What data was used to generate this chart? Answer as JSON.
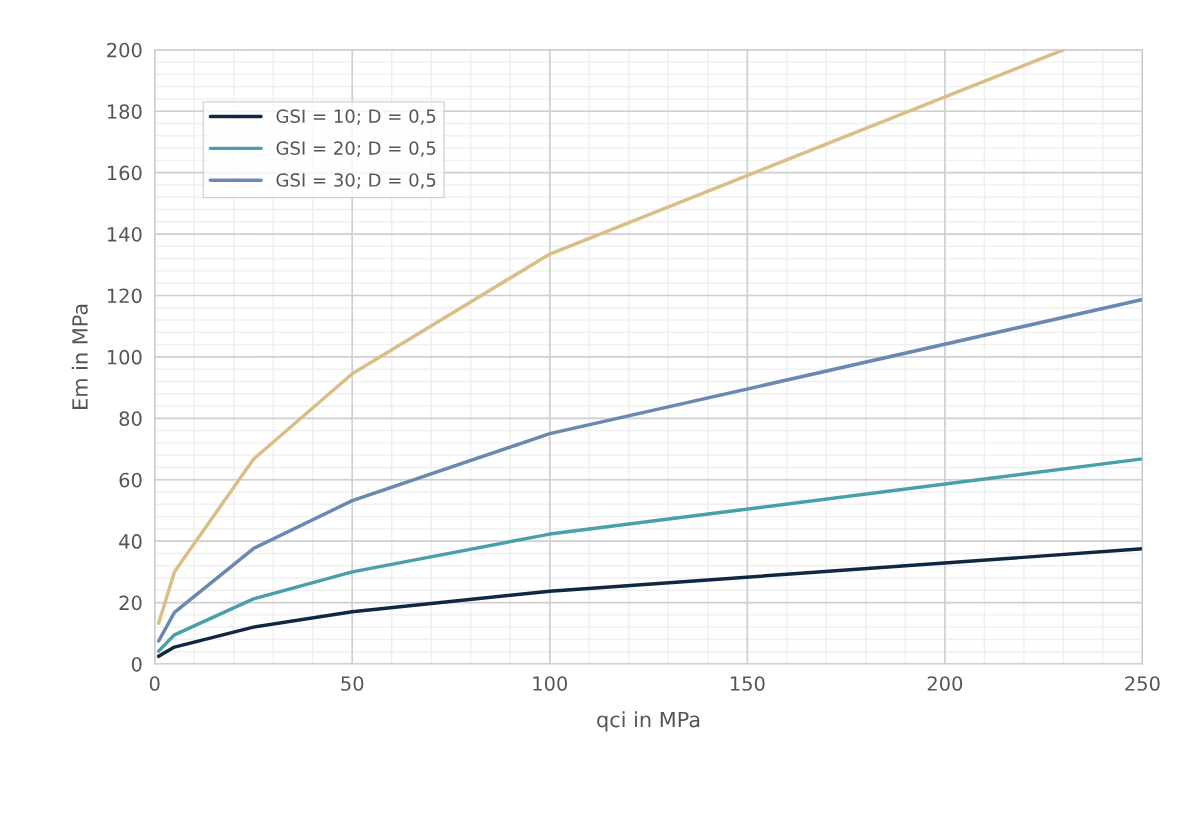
{
  "chart_data": {
    "type": "line",
    "xlabel": "qci in MPa",
    "ylabel": "Em in MPa",
    "x": [
      1,
      5,
      25,
      50,
      100,
      250
    ],
    "series": [
      {
        "name": "GSI = 10; D = 0,5",
        "color": "#0e2841",
        "values": [
          2.5,
          5.5,
          12,
          17,
          23.7,
          37.5
        ]
      },
      {
        "name": "GSI = 20; D = 0,5",
        "color": "#4aa0aa",
        "values": [
          4.2,
          9.5,
          21.2,
          30,
          42.3,
          66.8
        ]
      },
      {
        "name": "GSI = 30; D = 0,5",
        "color": "#6a88b2",
        "values": [
          7.5,
          16.8,
          37.6,
          53.2,
          75,
          118.7
        ]
      },
      {
        "color": "#d9bf86",
        "x": [
          1,
          5,
          25,
          50,
          100,
          230
        ],
        "values": [
          13.3,
          30,
          66.7,
          94.5,
          133.5,
          200
        ]
      }
    ],
    "xlim": [
      0,
      250
    ],
    "xticks": [
      0,
      50,
      100,
      150,
      200,
      250
    ],
    "ylim": [
      0,
      200
    ],
    "yticks": [
      0,
      20,
      40,
      60,
      80,
      100,
      120,
      140,
      160,
      180,
      200
    ],
    "grid": true,
    "legend": "top left",
    "marker": "none",
    "line_style": "solid"
  }
}
